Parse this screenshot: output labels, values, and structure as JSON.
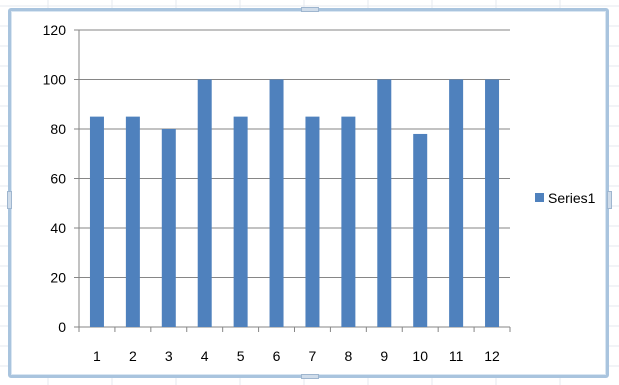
{
  "chart_data": {
    "type": "bar",
    "categories": [
      "1",
      "2",
      "3",
      "4",
      "5",
      "6",
      "7",
      "8",
      "9",
      "10",
      "11",
      "12"
    ],
    "series": [
      {
        "name": "Series1",
        "values": [
          85,
          85,
          80,
          100,
          85,
          100,
          85,
          85,
          100,
          78,
          100,
          100
        ],
        "color": "#4f81bd"
      }
    ],
    "title": "",
    "xlabel": "",
    "ylabel": "",
    "ylim": [
      0,
      120
    ],
    "yticks": [
      "0",
      "20",
      "40",
      "60",
      "80",
      "100",
      "120"
    ],
    "grid": "horizontal",
    "legend": "right"
  },
  "colors": {
    "frame_border": "#a9c4de",
    "gridline": "#868686",
    "axis": "#868686"
  }
}
